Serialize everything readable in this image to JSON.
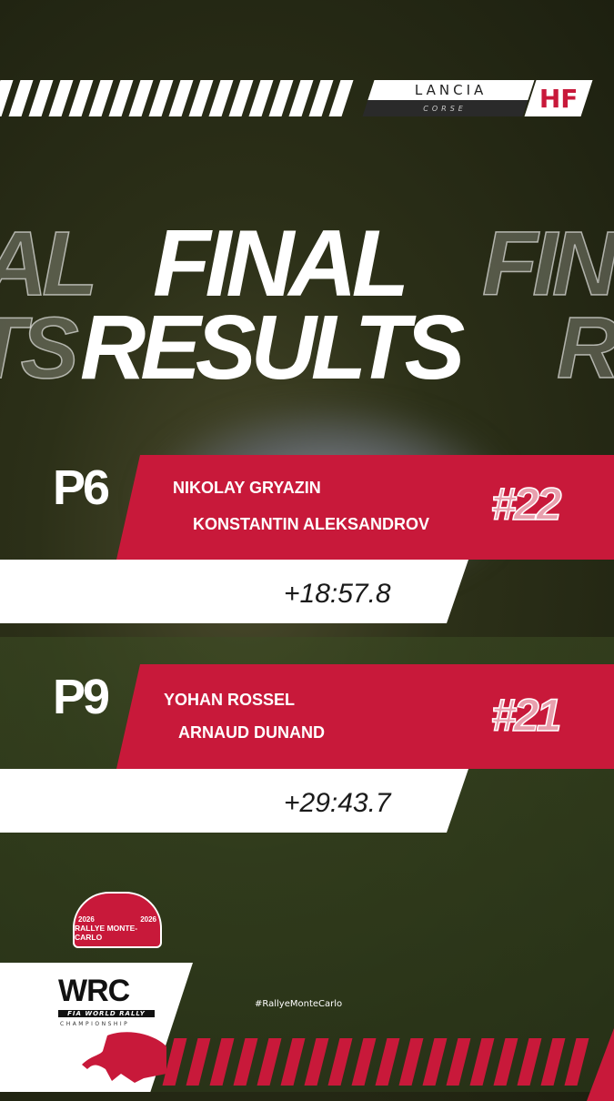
{
  "brand": {
    "lancia": "LANCIA",
    "corse": "CORSE",
    "hf": "HF"
  },
  "title": {
    "line1": "FINAL",
    "line2": "RESULTS",
    "ghost_left1": "AL",
    "ghost_right1": "FIN",
    "ghost_left2": "TS",
    "ghost_right2": "R"
  },
  "results": [
    {
      "position": "P6",
      "driver": "NIKOLAY GRYAZIN",
      "codriver": "KONSTANTIN ALEKSANDROV",
      "car_number": "#22",
      "gap": "+18:57.8"
    },
    {
      "position": "P9",
      "driver": "YOHAN ROSSEL",
      "codriver": "ARNAUD DUNAND",
      "car_number": "#21",
      "gap": "+29:43.7"
    }
  ],
  "event_logo": {
    "name": "RALLYE MONTE-CARLO",
    "year": "2026"
  },
  "wrc_logo": {
    "mark": "WRC",
    "line1": "FIA WORLD RALLY",
    "line2": "CHAMPIONSHIP"
  },
  "hashtag": "#RallyeMonteCarlo",
  "colors": {
    "accent": "#c8193a",
    "white": "#ffffff"
  }
}
